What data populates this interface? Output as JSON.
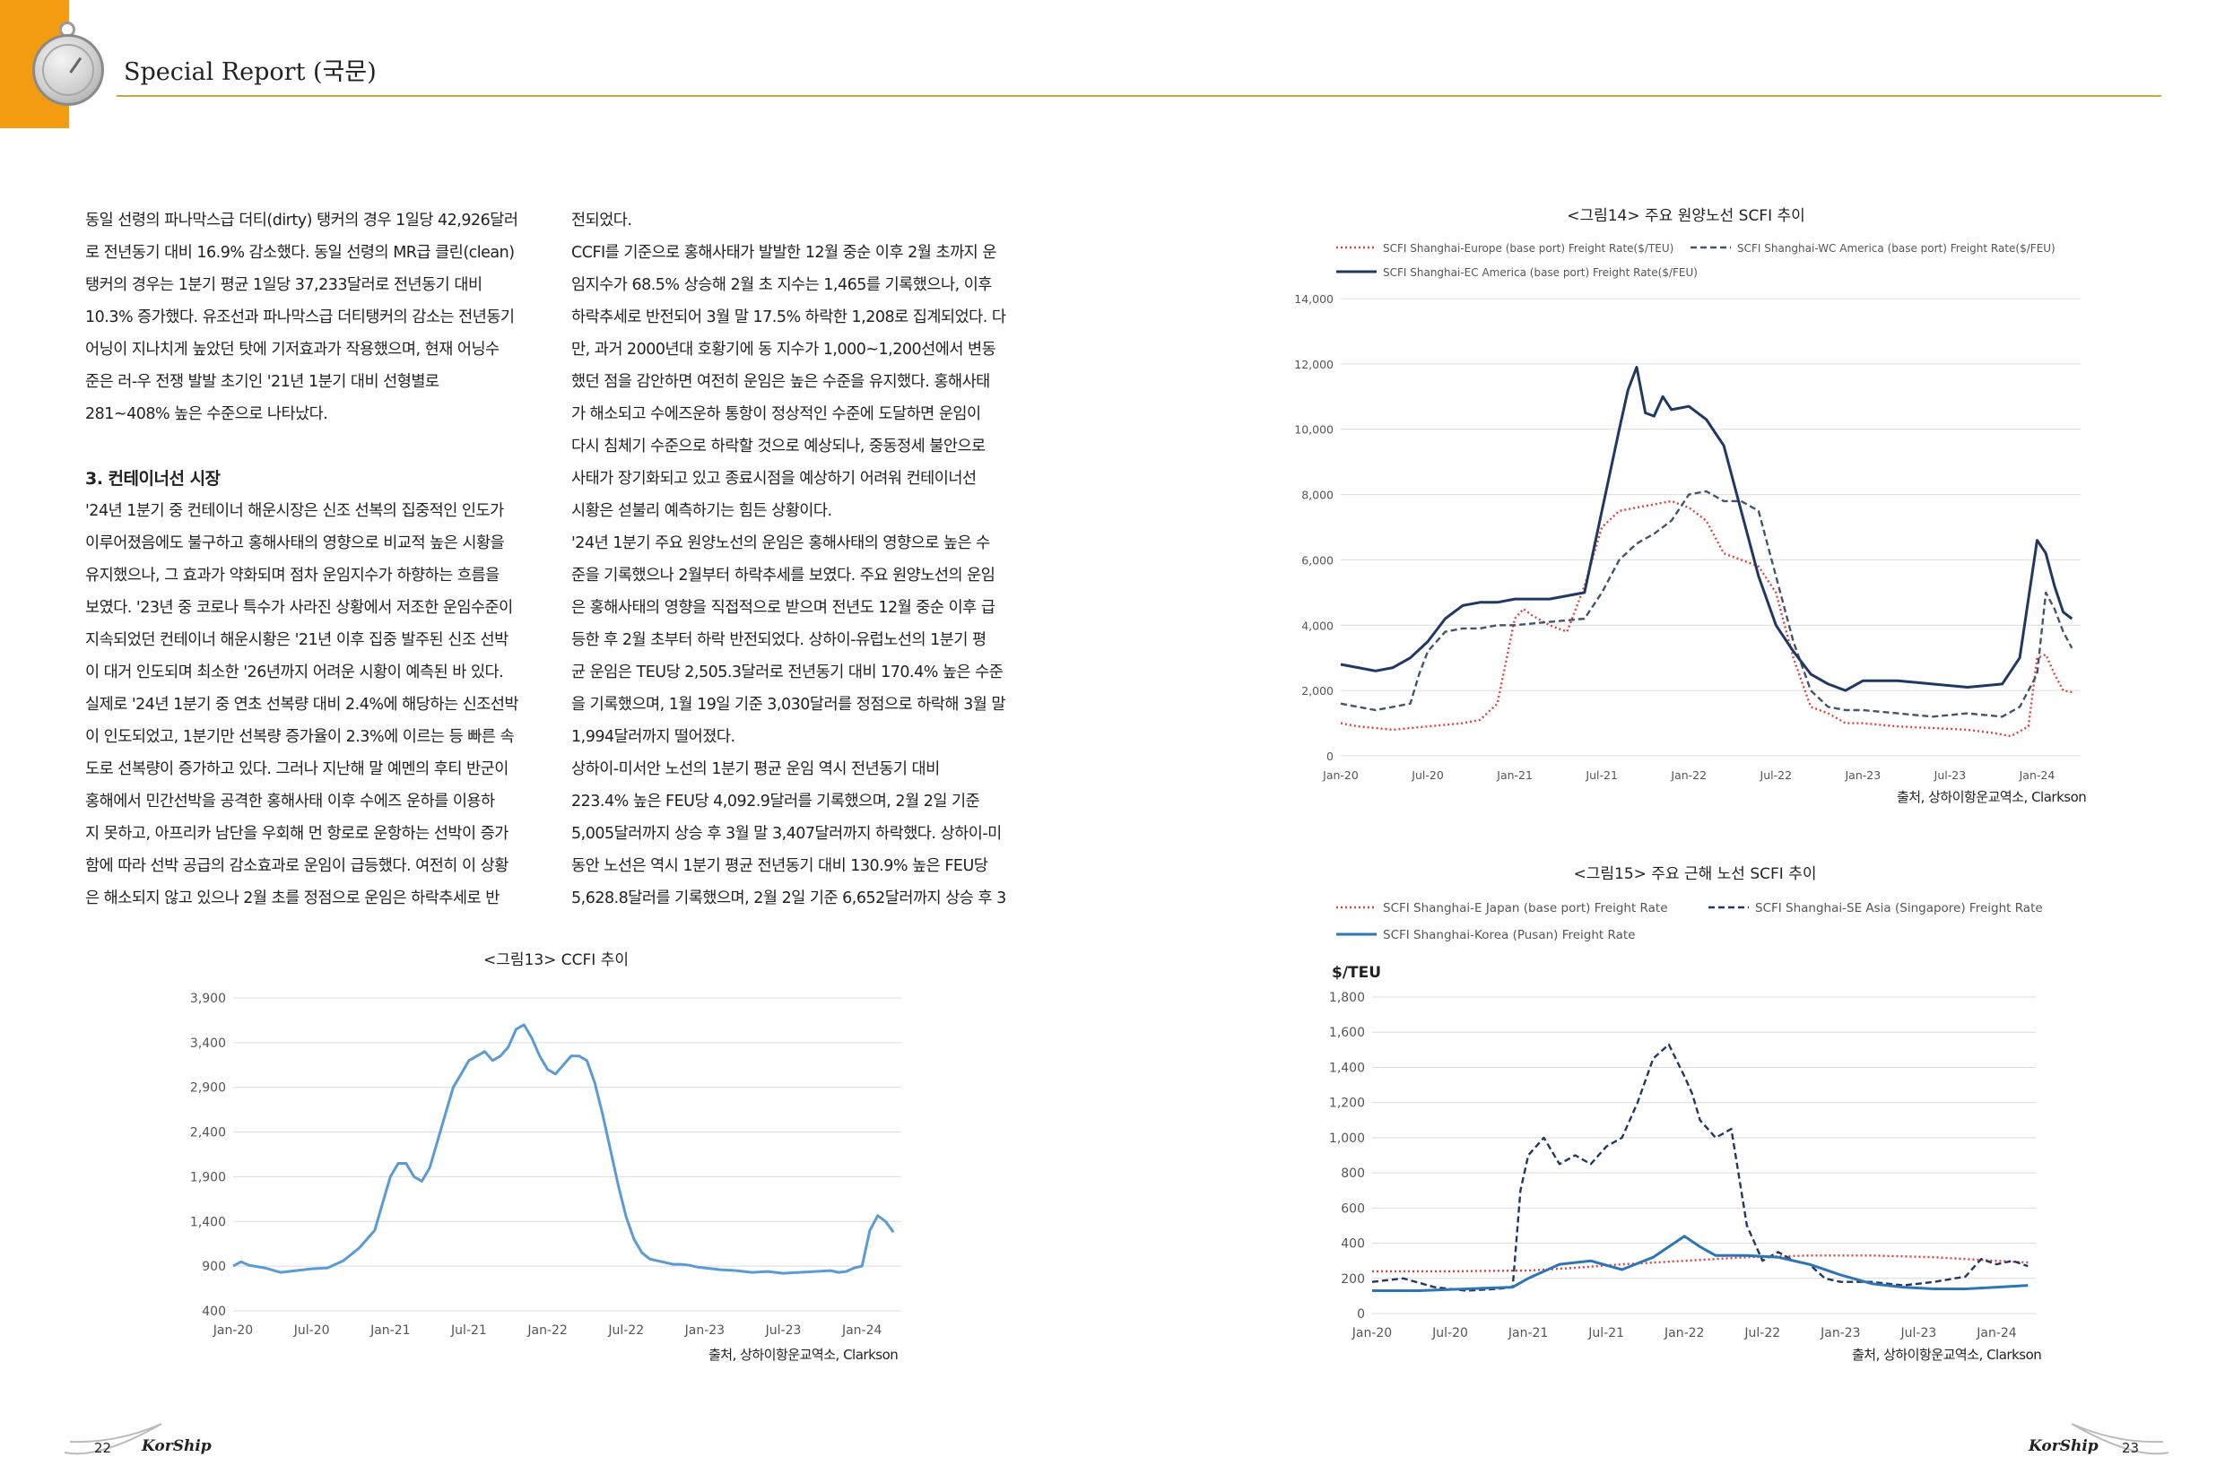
{
  "header": {
    "title": "Special Report (국문)"
  },
  "column_left": {
    "lines_a": [
      "동일 선령의 파나막스급 더티(dirty) 탱커의 경우 1일당 42,926달러",
      "로 전년동기 대비 16.9% 감소했다. 동일 선령의 MR급 클린(clean)",
      "탱커의 경우는 1분기 평균 1일당 37,233달러로 전년동기 대비",
      "10.3% 증가했다. 유조선과 파나막스급 더티탱커의 감소는 전년동기",
      "어닝이 지나치게 높았던 탓에 기저효과가 작용했으며, 현재 어닝수",
      "준은 러-우 전쟁 발발 초기인 '21년 1분기 대비 선형별로",
      "281~408% 높은 수준으로 나타났다."
    ],
    "heading": "3. 컨테이너선 시장",
    "lines_b": [
      "'24년 1분기 중 컨테이너 해운시장은 신조 선복의 집중적인 인도가",
      "이루어졌음에도 불구하고 홍해사태의 영향으로 비교적 높은 시황을",
      "유지했으나, 그 효과가 약화되며 점차 운임지수가 하향하는 흐름을",
      "보였다. '23년 중 코로나 특수가 사라진 상황에서 저조한 운임수준이",
      "지속되었던 컨테이너 해운시황은 '21년 이후 집중 발주된 신조 선박",
      "이 대거 인도되며 최소한 '26년까지 어려운 시황이 예측된 바 있다.",
      "실제로 '24년 1분기 중 연초 선복량 대비 2.4%에 해당하는 신조선박",
      "이 인도되었고, 1분기만 선복량 증가율이 2.3%에 이르는 등 빠른 속",
      "도로 선복량이 증가하고 있다. 그러나 지난해 말 예멘의 후티 반군이",
      "홍해에서 민간선박을 공격한 홍해사태 이후 수에즈 운하를 이용하",
      "지 못하고, 아프리카 남단을 우회해 먼 항로로 운항하는 선박이 증가",
      "함에 따라 선박 공급의 감소효과로 운임이 급등했다. 여전히 이 상황",
      "은 해소되지 않고 있으나 2월 초를 정점으로 운임은 하락추세로 반"
    ]
  },
  "column_right": {
    "lines": [
      "전되었다.",
      "CCFI를 기준으로 홍해사태가 발발한 12월 중순 이후 2월 초까지 운",
      "임지수가 68.5% 상승해 2월 초 지수는 1,465를 기록했으나, 이후",
      "하락추세로 반전되어 3월 말 17.5% 하락한 1,208로 집계되었다. 다",
      "만, 과거 2000년대 호황기에 동 지수가 1,000~1,200선에서 변동",
      "했던 점을 감안하면 여전히 운임은 높은 수준을 유지했다. 홍해사태",
      "가 해소되고 수에즈운하 통항이 정상적인 수준에 도달하면 운임이",
      "다시 침체기 수준으로 하락할 것으로 예상되나, 중동정세 불안으로",
      "사태가 장기화되고 있고 종료시점을 예상하기 어려워 컨테이너선",
      "시황은 섣불리 예측하기는 힘든 상황이다.",
      "'24년 1분기 주요 원양노선의 운임은 홍해사태의 영향으로 높은 수",
      "준을 기록했으나 2월부터 하락추세를 보였다. 주요 원양노선의 운임",
      "은 홍해사태의 영향을 직접적으로 받으며 전년도 12월 중순 이후 급",
      "등한 후 2월 초부터 하락 반전되었다. 상하이-유럽노선의 1분기 평",
      "균 운임은 TEU당 2,505.3달러로 전년동기 대비 170.4% 높은 수준",
      "을 기록했으며, 1월 19일 기준 3,030달러를 정점으로 하락해 3월 말",
      "1,994달러까지 떨어졌다.",
      "상하이-미서안 노선의 1분기 평균 운임 역시 전년동기 대비",
      "223.4% 높은 FEU당 4,092.9달러를 기록했으며, 2월 2일 기준",
      "5,005달러까지 상승 후 3월 말 3,407달러까지 하락했다. 상하이-미",
      "동안 노선은 역시 1분기 평균 전년동기 대비 130.9% 높은 FEU당",
      "5,628.8달러를 기록했으며, 2월 2일 기준 6,652달러까지 상승 후 3"
    ]
  },
  "figures": {
    "fig13": {
      "title": "<그림13> CCFI 추이",
      "source": "출처, 상하이항운교역소, Clarkson"
    },
    "fig14": {
      "title": "<그림14> 주요 원양노선 SCFI 추이",
      "source": "출처, 상하이항운교역소, Clarkson"
    },
    "fig15": {
      "title": "<그림15> 주요 근해 노선 SCFI 추이",
      "source": "출처, 상하이항운교역소, Clarkson"
    }
  },
  "footer": {
    "page_left": "22",
    "page_right": "23",
    "brand": "KorShip"
  },
  "chart_data": [
    {
      "id": "fig13",
      "type": "line",
      "title": "<그림13> CCFI 추이",
      "x_tick_labels": [
        "Jan-20",
        "Jul-20",
        "Jan-21",
        "Jul-21",
        "Jan-22",
        "Jul-22",
        "Jan-23",
        "Jul-23",
        "Jan-24"
      ],
      "y_tick_labels": [
        "400",
        "900",
        "1,400",
        "1,900",
        "2,400",
        "2,900",
        "3,400",
        "3,900"
      ],
      "ylim": [
        400,
        3900
      ],
      "xlim": [
        2020.0,
        2024.25
      ],
      "color": "#5b9bd5",
      "series": [
        {
          "x": [
            2020.0,
            2020.05,
            2020.1,
            2020.2,
            2020.3,
            2020.35,
            2020.4,
            2020.5,
            2020.6,
            2020.7,
            2020.8,
            2020.9,
            2020.95,
            2021.0,
            2021.05,
            2021.1,
            2021.15,
            2021.2,
            2021.25,
            2021.3,
            2021.35,
            2021.4,
            2021.45,
            2021.5,
            2021.55,
            2021.6,
            2021.65,
            2021.7,
            2021.75,
            2021.8,
            2021.85,
            2021.9,
            2021.95,
            2022.0,
            2022.05,
            2022.1,
            2022.15,
            2022.2,
            2022.25,
            2022.3,
            2022.35,
            2022.4,
            2022.45,
            2022.5,
            2022.55,
            2022.6,
            2022.65,
            2022.7,
            2022.75,
            2022.8,
            2022.85,
            2022.9,
            2022.95,
            2023.0,
            2023.1,
            2023.2,
            2023.3,
            2023.4,
            2023.5,
            2023.6,
            2023.7,
            2023.8,
            2023.85,
            2023.9,
            2023.95,
            2024.0,
            2024.05,
            2024.1,
            2024.15,
            2024.2
          ],
          "y": [
            900,
            950,
            910,
            880,
            830,
            840,
            850,
            870,
            880,
            960,
            1100,
            1300,
            1600,
            1900,
            2050,
            2050,
            1900,
            1850,
            2000,
            2300,
            2600,
            2900,
            3050,
            3200,
            3250,
            3300,
            3200,
            3250,
            3350,
            3550,
            3600,
            3450,
            3250,
            3100,
            3050,
            3150,
            3250,
            3250,
            3200,
            2950,
            2600,
            2200,
            1800,
            1450,
            1200,
            1050,
            980,
            960,
            940,
            920,
            920,
            910,
            890,
            880,
            860,
            850,
            830,
            840,
            820,
            830,
            840,
            850,
            830,
            840,
            880,
            900,
            1300,
            1465,
            1400,
            1280
          ]
        }
      ]
    },
    {
      "id": "fig14",
      "type": "line",
      "title": "<그림14> 주요 원양노선 SCFI 추이",
      "x_tick_labels": [
        "Jan-20",
        "Jul-20",
        "Jan-21",
        "Jul-21",
        "Jan-22",
        "Jul-22",
        "Jan-23",
        "Jul-23",
        "Jan-24"
      ],
      "y_tick_labels": [
        "0",
        "2,000",
        "4,000",
        "6,000",
        "8,000",
        "10,000",
        "12,000",
        "14,000"
      ],
      "ylim": [
        0,
        14000
      ],
      "xlim": [
        2020.0,
        2024.25
      ],
      "series": [
        {
          "name": "SCFI Shanghai-Europe (base port) Freight Rate($/TEU)",
          "style": "dotted",
          "color": "#e04040",
          "x": [
            2020.0,
            2020.1,
            2020.2,
            2020.3,
            2020.4,
            2020.5,
            2020.6,
            2020.7,
            2020.8,
            2020.9,
            2021.0,
            2021.05,
            2021.1,
            2021.2,
            2021.3,
            2021.4,
            2021.5,
            2021.6,
            2021.7,
            2021.8,
            2021.9,
            2022.0,
            2022.1,
            2022.2,
            2022.3,
            2022.4,
            2022.5,
            2022.6,
            2022.7,
            2022.8,
            2022.9,
            2023.0,
            2023.2,
            2023.4,
            2023.6,
            2023.75,
            2023.85,
            2023.95,
            2024.0,
            2024.05,
            2024.1,
            2024.15,
            2024.2
          ],
          "y": [
            1000,
            900,
            850,
            800,
            850,
            900,
            950,
            1000,
            1100,
            1600,
            4200,
            4500,
            4300,
            4000,
            3800,
            5200,
            7000,
            7500,
            7600,
            7700,
            7800,
            7600,
            7200,
            6200,
            6000,
            5800,
            5000,
            3000,
            1500,
            1300,
            1000,
            1000,
            900,
            850,
            800,
            700,
            600,
            900,
            3000,
            3100,
            2500,
            2000,
            1950
          ]
        },
        {
          "name": "SCFI Shanghai-WC America (base port) Freight Rate($/FEU)",
          "style": "dashed",
          "color": "#44546a",
          "x": [
            2020.0,
            2020.1,
            2020.2,
            2020.3,
            2020.4,
            2020.45,
            2020.5,
            2020.6,
            2020.7,
            2020.8,
            2020.9,
            2021.0,
            2021.2,
            2021.4,
            2021.5,
            2021.6,
            2021.7,
            2021.8,
            2021.9,
            2022.0,
            2022.1,
            2022.2,
            2022.3,
            2022.4,
            2022.5,
            2022.6,
            2022.7,
            2022.8,
            2022.9,
            2023.0,
            2023.2,
            2023.4,
            2023.6,
            2023.8,
            2023.9,
            2024.0,
            2024.05,
            2024.1,
            2024.15,
            2024.2
          ],
          "y": [
            1600,
            1500,
            1400,
            1500,
            1600,
            2500,
            3200,
            3800,
            3900,
            3900,
            4000,
            4000,
            4100,
            4200,
            5000,
            6000,
            6500,
            6800,
            7200,
            8000,
            8100,
            7800,
            7800,
            7500,
            5500,
            3500,
            2000,
            1500,
            1400,
            1400,
            1300,
            1200,
            1300,
            1200,
            1500,
            2500,
            5000,
            4500,
            3800,
            3300
          ]
        },
        {
          "name": "SCFI Shanghai-EC America (base port) Freight Rate($/FEU)",
          "style": "solid",
          "color": "#1f3864",
          "x": [
            2020.0,
            2020.1,
            2020.2,
            2020.3,
            2020.4,
            2020.5,
            2020.6,
            2020.7,
            2020.8,
            2020.9,
            2021.0,
            2021.2,
            2021.4,
            2021.5,
            2021.6,
            2021.65,
            2021.7,
            2021.75,
            2021.8,
            2021.85,
            2021.9,
            2022.0,
            2022.1,
            2022.2,
            2022.3,
            2022.4,
            2022.5,
            2022.6,
            2022.7,
            2022.8,
            2022.9,
            2023.0,
            2023.2,
            2023.4,
            2023.6,
            2023.8,
            2023.9,
            2024.0,
            2024.05,
            2024.1,
            2024.15,
            2024.2
          ],
          "y": [
            2800,
            2700,
            2600,
            2700,
            3000,
            3500,
            4200,
            4600,
            4700,
            4700,
            4800,
            4800,
            5000,
            7500,
            10000,
            11200,
            11900,
            10500,
            10400,
            11000,
            10600,
            10700,
            10300,
            9500,
            7500,
            5500,
            4000,
            3200,
            2500,
            2200,
            2000,
            2300,
            2300,
            2200,
            2100,
            2200,
            3000,
            6600,
            6200,
            5200,
            4400,
            4200
          ]
        }
      ]
    },
    {
      "id": "fig15",
      "type": "line",
      "title": "<그림15> 주요 근해 노선 SCFI 추이",
      "ylabel": "$/TEU",
      "x_tick_labels": [
        "Jan-20",
        "Jul-20",
        "Jan-21",
        "Jul-21",
        "Jan-22",
        "Jul-22",
        "Jan-23",
        "Jul-23",
        "Jan-24"
      ],
      "y_tick_labels": [
        "0",
        "200",
        "400",
        "600",
        "800",
        "1,000",
        "1,200",
        "1,400",
        "1,600",
        "1,800"
      ],
      "ylim": [
        0,
        1800
      ],
      "xlim": [
        2020.0,
        2024.25
      ],
      "series": [
        {
          "name": "SCFI Shanghai-E Japan (base port) Freight Rate",
          "style": "dotted",
          "color": "#e04040",
          "x": [
            2020.0,
            2020.5,
            2021.0,
            2021.3,
            2021.6,
            2022.0,
            2022.4,
            2022.8,
            2023.2,
            2023.6,
            2024.0,
            2024.2
          ],
          "y": [
            240,
            240,
            245,
            260,
            280,
            300,
            320,
            330,
            330,
            320,
            300,
            290
          ]
        },
        {
          "name": "SCFI Shanghai-SE Asia (Singapore) Freight Rate",
          "style": "dashed",
          "color": "#1f3864",
          "x": [
            2020.0,
            2020.2,
            2020.4,
            2020.6,
            2020.8,
            2020.9,
            2020.95,
            2021.0,
            2021.1,
            2021.2,
            2021.3,
            2021.4,
            2021.5,
            2021.6,
            2021.7,
            2021.8,
            2021.9,
            2022.0,
            2022.05,
            2022.1,
            2022.2,
            2022.3,
            2022.4,
            2022.5,
            2022.6,
            2022.7,
            2022.8,
            2022.9,
            2023.0,
            2023.2,
            2023.4,
            2023.6,
            2023.8,
            2023.9,
            2024.0,
            2024.1,
            2024.2
          ],
          "y": [
            180,
            200,
            150,
            130,
            140,
            150,
            700,
            900,
            1000,
            850,
            900,
            850,
            950,
            1000,
            1200,
            1450,
            1530,
            1350,
            1250,
            1100,
            1000,
            1050,
            500,
            300,
            350,
            300,
            280,
            200,
            180,
            180,
            160,
            180,
            210,
            310,
            280,
            300,
            270
          ]
        },
        {
          "name": "SCFI Shanghai-Korea (Pusan) Freight Rate",
          "style": "solid",
          "color": "#2e75b6",
          "x": [
            2020.0,
            2020.3,
            2020.6,
            2020.9,
            2021.0,
            2021.2,
            2021.4,
            2021.6,
            2021.8,
            2022.0,
            2022.1,
            2022.2,
            2022.4,
            2022.6,
            2022.8,
            2023.0,
            2023.2,
            2023.4,
            2023.6,
            2023.8,
            2024.0,
            2024.2
          ],
          "y": [
            130,
            130,
            140,
            150,
            200,
            280,
            300,
            250,
            320,
            440,
            380,
            330,
            330,
            320,
            280,
            220,
            170,
            150,
            140,
            140,
            150,
            160
          ]
        }
      ]
    }
  ]
}
